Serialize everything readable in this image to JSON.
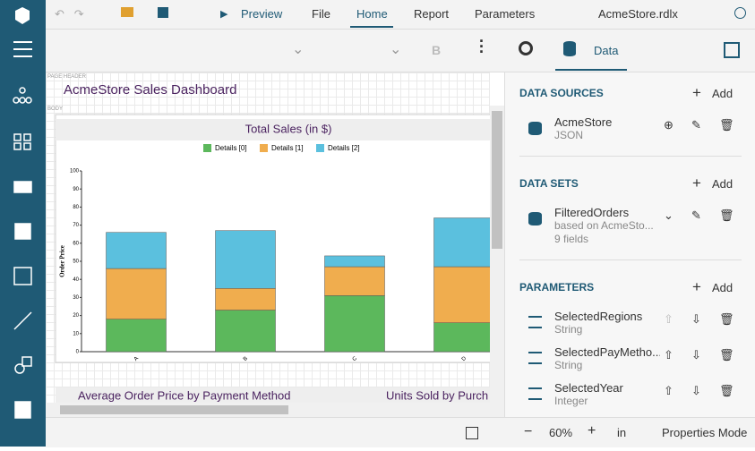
{
  "app": {
    "menu": [
      "Preview",
      "File",
      "Home",
      "Report",
      "Parameters"
    ],
    "file_name": "AcmeStore.rdlx",
    "bold_button": "B",
    "panel_tab": "Data",
    "report": {
      "page_header_label": "PAGE HEADER",
      "title": "AcmeStore Sales Dashboard",
      "body_label": "BODY",
      "lower_titles": [
        "Average Order Price by Payment Method",
        "Units Sold by Purch"
      ]
    },
    "sections": [
      {
        "heading": "DATA SOURCES",
        "add": "Add",
        "items": [
          {
            "name": "AcmeStore",
            "lines": [
              "JSON"
            ]
          }
        ]
      },
      {
        "heading": "DATA SETS",
        "add": "Add",
        "items": [
          {
            "name": "FilteredOrders",
            "lines": [
              "based on AcmeSto...",
              "9 fields"
            ]
          }
        ]
      },
      {
        "heading": "PARAMETERS",
        "add": "Add",
        "items": [
          {
            "name": "SelectedRegions",
            "lines": [
              "String"
            ]
          },
          {
            "name": "SelectedPayMetho...",
            "lines": [
              "String"
            ]
          },
          {
            "name": "SelectedYear",
            "lines": [
              "Integer"
            ]
          }
        ]
      }
    ],
    "status": {
      "zoom": "60%",
      "unit": "in",
      "mode": "Properties Mode"
    }
  },
  "chart_data": {
    "type": "stacked_bar",
    "title": "Total Sales (in $)",
    "y_label": "Order Price",
    "categories": [
      "A",
      "B",
      "C",
      "D"
    ],
    "series": [
      {
        "name": "Details [0]",
        "color": "#5cb85c",
        "values": [
          18,
          23,
          31,
          16
        ]
      },
      {
        "name": "Details [1]",
        "color": "#f0ad4e",
        "values": [
          28,
          12,
          16,
          31
        ]
      },
      {
        "name": "Details [2]",
        "color": "#5bc0de",
        "values": [
          20,
          32,
          6,
          27
        ]
      }
    ],
    "ylim": [
      0,
      100
    ],
    "yticks": [
      0,
      10,
      20,
      30,
      40,
      50,
      60,
      70,
      80,
      90,
      100
    ],
    "grid": false,
    "legend": "top"
  }
}
